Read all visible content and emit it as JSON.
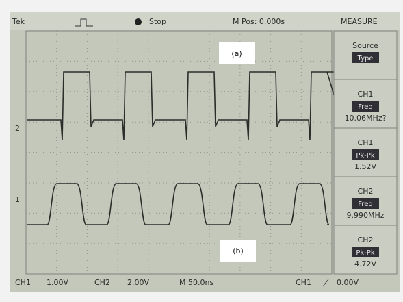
{
  "header": {
    "brand": "Tek",
    "status": "Stop",
    "position": "M Pos: 0.000s",
    "menu_title": "MEASURE"
  },
  "annotations": {
    "a": "(a)",
    "b": "(b)"
  },
  "channel_markers": [
    "2",
    "1"
  ],
  "measure_menu": [
    {
      "label": "Source",
      "button": "Type"
    },
    {
      "label": "CH1",
      "button": "Freq",
      "reading": "10.06MHz?"
    },
    {
      "label": "CH1",
      "button": "Pk-Pk",
      "reading": "1.52V"
    },
    {
      "label": "CH2",
      "button": "Freq",
      "reading": "9.990MHz"
    },
    {
      "label": "CH2",
      "button": "Pk-Pk",
      "reading": "4.72V"
    }
  ],
  "footer": {
    "ch1_label": "CH1",
    "ch1_scale": "1.00V",
    "ch2_label": "CH2",
    "ch2_scale": "2.00V",
    "timebase": "M 50.0ns",
    "trigger_source": "CH1",
    "trigger_level": "0.00V"
  }
}
